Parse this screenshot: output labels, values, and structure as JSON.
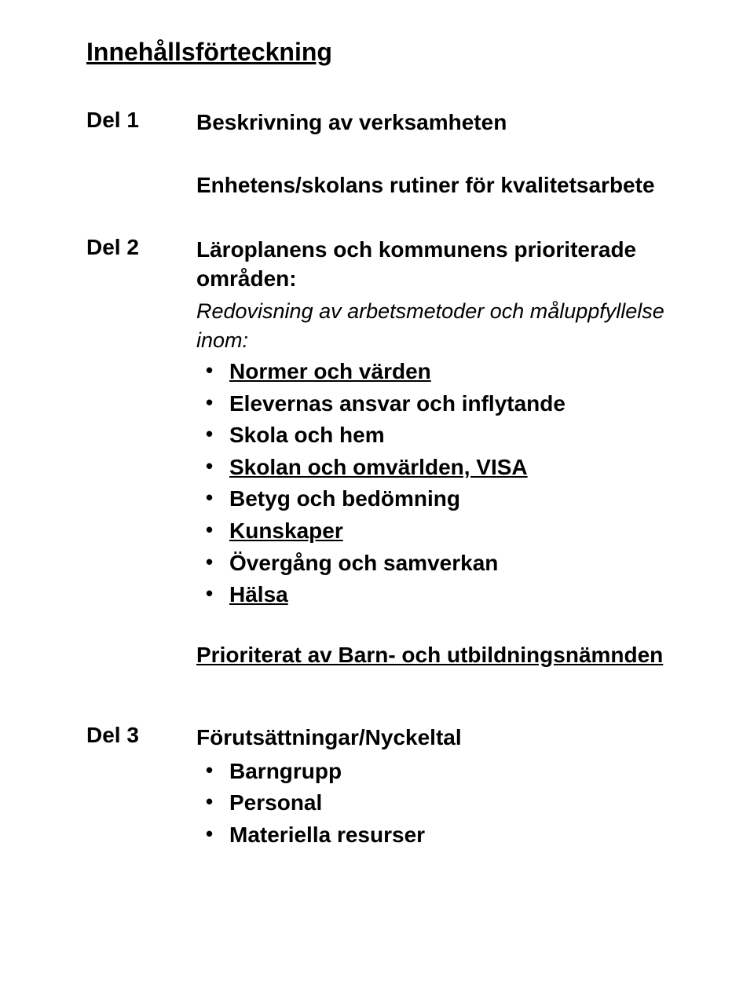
{
  "title": "Innehållsförteckning",
  "sections": {
    "del1": {
      "label": "Del 1",
      "heading1": "Beskrivning av verksamheten",
      "heading2": "Enhetens/skolans rutiner för kvalitets­arbete"
    },
    "del2": {
      "label": "Del 2",
      "heading": "Läroplanens och kommunens priori­terade områden:",
      "subheading": "Redovisning av arbetsmetoder och måluppfyl­lelse inom:",
      "items": [
        {
          "text": "Normer och värden",
          "underline": true
        },
        {
          "text": "Elevernas ansvar och inflytande",
          "underline": false
        },
        {
          "text": "Skola och hem",
          "underline": false
        },
        {
          "text": "Skolan och omvärlden, VISA",
          "underline": true
        },
        {
          "text": "Betyg och bedömning",
          "underline": false
        },
        {
          "text": "Kunskaper",
          "underline": true,
          "trailing_space_underline": true
        },
        {
          "text": "Övergång och samverkan",
          "underline": false
        },
        {
          "text": "Hälsa",
          "underline": true
        }
      ],
      "priority": "Prioriterat av Barn- och utbildningsnämnden"
    },
    "del3": {
      "label": "Del 3",
      "heading": "Förutsättningar/Nyckeltal",
      "items": [
        "Barngrupp",
        "Personal",
        "Materiella resurser"
      ]
    }
  }
}
